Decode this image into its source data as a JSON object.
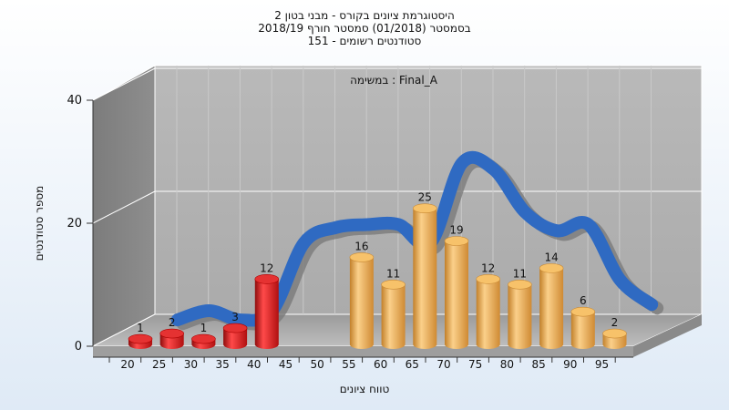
{
  "title": {
    "line1": "היסטוגרמת ציונים בקורס - מבני בטון 2",
    "line2": "בסמסטר  (01/2018)  סמסטר חורף 2018/19",
    "line3": "סטודנטים רשומים - 151"
  },
  "chart_data": {
    "type": "bar",
    "annotation": "במשימה : Final_A",
    "xlabel": "טווח ציונים",
    "ylabel": "מספר סטודנטים",
    "ylim": [
      0,
      40
    ],
    "yticks": [
      0,
      20,
      40
    ],
    "categories": [
      "20",
      "25",
      "30",
      "35",
      "40",
      "45",
      "50",
      "55",
      "60",
      "65",
      "70",
      "75",
      "80",
      "85",
      "90",
      "95"
    ],
    "values": [
      1,
      2,
      1,
      3,
      12,
      null,
      null,
      16,
      11,
      25,
      19,
      12,
      11,
      14,
      6,
      2
    ],
    "colors": {
      "fail": "#d91c1c",
      "pass": "#e9a94a",
      "curve": "#2f6ac2",
      "curve_shadow": "#7a7a7a"
    },
    "fail_categories": [
      "20",
      "25",
      "30",
      "35",
      "40"
    ],
    "distribution_curve": [
      {
        "x": "25",
        "y": 2.5
      },
      {
        "x": "30",
        "y": 4
      },
      {
        "x": "35",
        "y": 2.5
      },
      {
        "x": "40",
        "y": 4
      },
      {
        "x": "45",
        "y": 15
      },
      {
        "x": "50",
        "y": 17.5
      },
      {
        "x": "55",
        "y": 18
      },
      {
        "x": "60",
        "y": 18
      },
      {
        "x": "65",
        "y": 15
      },
      {
        "x": "70",
        "y": 28
      },
      {
        "x": "75",
        "y": 27
      },
      {
        "x": "80",
        "y": 20
      },
      {
        "x": "85",
        "y": 17
      },
      {
        "x": "90",
        "y": 18
      },
      {
        "x": "95",
        "y": 9
      },
      {
        "x": "100",
        "y": 5
      }
    ]
  }
}
